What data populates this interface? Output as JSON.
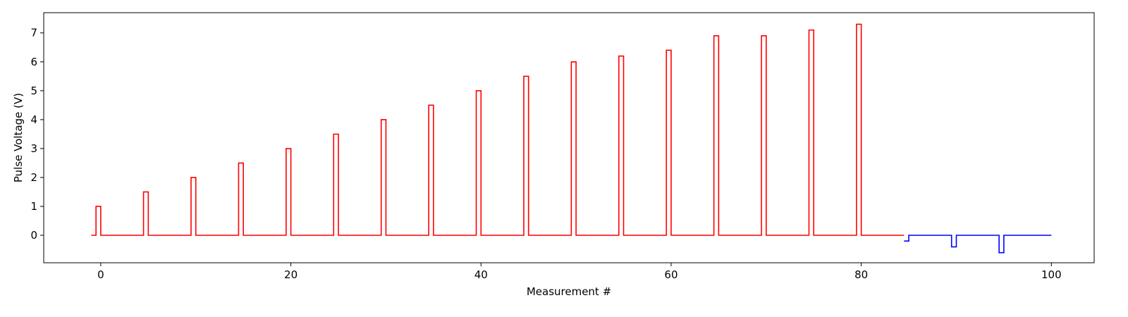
{
  "chart_data": {
    "type": "line",
    "title": "",
    "xlabel": "Measurement #",
    "ylabel": "Pulse Voltage (V)",
    "xlim": [
      -6,
      104.5
    ],
    "ylim": [
      -0.95,
      7.7
    ],
    "xticks": [
      0,
      20,
      40,
      60,
      80,
      100
    ],
    "yticks": [
      0,
      1,
      2,
      3,
      4,
      5,
      6,
      7
    ],
    "xtick_labels": [
      "0",
      "20",
      "40",
      "60",
      "80",
      "100"
    ],
    "ytick_labels": [
      "0",
      "1",
      "2",
      "3",
      "4",
      "5",
      "6",
      "7"
    ],
    "grid": false,
    "legend": "none",
    "series": [
      {
        "color": "#ff0000",
        "step": "post",
        "x": [
          -1,
          -0.5,
          0,
          4.5,
          5,
          9.5,
          10,
          14.5,
          15,
          19.5,
          20,
          24.5,
          25,
          29.5,
          30,
          34.5,
          35,
          39.5,
          40,
          44.5,
          45,
          49.5,
          50,
          54.5,
          55,
          59.5,
          60,
          64.5,
          65,
          69.5,
          70,
          74.5,
          75,
          79.5,
          80,
          84.5
        ],
        "values": [
          0,
          1.0,
          0,
          1.5,
          0,
          2.0,
          0,
          2.5,
          0,
          3.0,
          0,
          3.5,
          0,
          4.0,
          0,
          4.5,
          0,
          5.0,
          0,
          5.5,
          0,
          6.0,
          0,
          6.2,
          0,
          6.4,
          0,
          6.9,
          0,
          6.9,
          0,
          7.1,
          0,
          7.3,
          0,
          0
        ]
      },
      {
        "color": "#0000ff",
        "step": "post",
        "x": [
          84.5,
          85,
          89.5,
          90,
          94.5,
          95,
          100
        ],
        "values": [
          -0.2,
          0,
          -0.4,
          0,
          -0.6,
          0,
          0
        ]
      }
    ]
  }
}
